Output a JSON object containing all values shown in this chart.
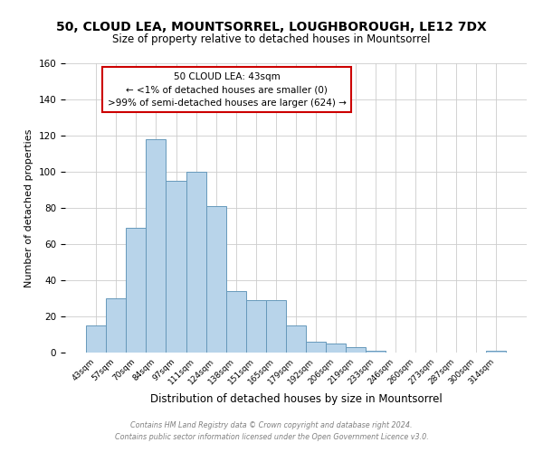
{
  "title": "50, CLOUD LEA, MOUNTSORREL, LOUGHBOROUGH, LE12 7DX",
  "subtitle": "Size of property relative to detached houses in Mountsorrel",
  "xlabel": "Distribution of detached houses by size in Mountsorrel",
  "ylabel": "Number of detached properties",
  "bar_color": "#b8d4ea",
  "bar_edge_color": "#6699bb",
  "categories": [
    "43sqm",
    "57sqm",
    "70sqm",
    "84sqm",
    "97sqm",
    "111sqm",
    "124sqm",
    "138sqm",
    "151sqm",
    "165sqm",
    "179sqm",
    "192sqm",
    "206sqm",
    "219sqm",
    "233sqm",
    "246sqm",
    "260sqm",
    "273sqm",
    "287sqm",
    "300sqm",
    "314sqm"
  ],
  "values": [
    15,
    30,
    69,
    118,
    95,
    100,
    81,
    34,
    29,
    29,
    15,
    6,
    5,
    3,
    1,
    0,
    0,
    0,
    0,
    0,
    1
  ],
  "ylim": [
    0,
    160
  ],
  "yticks": [
    0,
    20,
    40,
    60,
    80,
    100,
    120,
    140,
    160
  ],
  "annotation_title": "50 CLOUD LEA: 43sqm",
  "annotation_line1": "← <1% of detached houses are smaller (0)",
  "annotation_line2": ">99% of semi-detached houses are larger (624) →",
  "annotation_box_color": "#ffffff",
  "annotation_box_edge": "#cc0000",
  "footnote1": "Contains HM Land Registry data © Crown copyright and database right 2024.",
  "footnote2": "Contains public sector information licensed under the Open Government Licence v3.0."
}
